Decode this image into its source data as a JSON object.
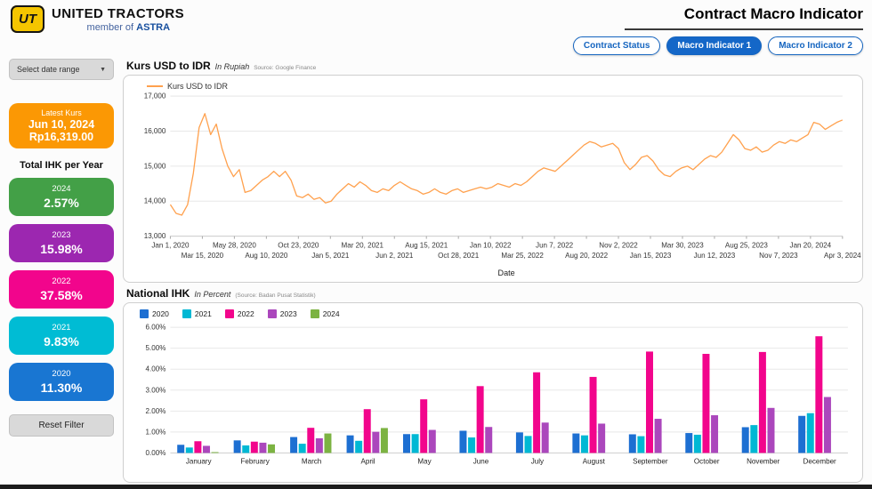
{
  "header": {
    "logo": "UT",
    "brand": "UNITED TRACTORS",
    "member_of": "member of",
    "astra": "ASTRA",
    "title": "Contract Macro Indicator",
    "tabs": [
      {
        "label": "Contract Status",
        "active": false
      },
      {
        "label": "Macro Indicator 1",
        "active": true
      },
      {
        "label": "Macro Indicator 2",
        "active": false
      }
    ]
  },
  "sidebar": {
    "date_range": {
      "label": "Select date range"
    },
    "latest_kurs": {
      "title": "Latest Kurs",
      "date": "Jun 10, 2024",
      "value": "Rp16,319.00",
      "color": "#FB9804"
    },
    "total_ihk_title": "Total IHK per Year",
    "year_cards": [
      {
        "year": "2024",
        "value": "2.57%",
        "color": "#43A047"
      },
      {
        "year": "2023",
        "value": "15.98%",
        "color": "#9C27B0"
      },
      {
        "year": "2022",
        "value": "37.58%",
        "color": "#F2058C"
      },
      {
        "year": "2021",
        "value": "9.83%",
        "color": "#00BCD4"
      },
      {
        "year": "2020",
        "value": "11.30%",
        "color": "#1976D2"
      }
    ],
    "reset_label": "Reset Filter"
  },
  "chart_data": [
    {
      "type": "line",
      "title": "Kurs USD to IDR",
      "subtitle": "In Rupiah",
      "source": "Source: Google Finance",
      "xlabel": "Date",
      "ylim": [
        13000,
        17000
      ],
      "y_ticks": [
        13000,
        14000,
        15000,
        16000,
        17000
      ],
      "x_ticks": [
        "Jan 1, 2020",
        "Mar 15, 2020",
        "May 28, 2020",
        "Aug 10, 2020",
        "Oct 23, 2020",
        "Jan 5, 2021",
        "Mar 20, 2021",
        "Jun 2, 2021",
        "Aug 15, 2021",
        "Oct 28, 2021",
        "Jan 10, 2022",
        "Mar 25, 2022",
        "Jun 7, 2022",
        "Aug 20, 2022",
        "Nov 2, 2022",
        "Jan 15, 2023",
        "Mar 30, 2023",
        "Jun 12, 2023",
        "Aug 25, 2023",
        "Nov 7, 2023",
        "Jan 20, 2024",
        "Apr 3, 2024"
      ],
      "legend_position": "top-left",
      "grid": true,
      "series": [
        {
          "name": "Kurs USD to IDR",
          "color": "#FFA14E",
          "values": [
            13900,
            13650,
            13600,
            13900,
            14800,
            16100,
            16500,
            15900,
            16200,
            15500,
            15000,
            14700,
            14900,
            14250,
            14300,
            14450,
            14600,
            14700,
            14850,
            14700,
            14850,
            14600,
            14150,
            14100,
            14200,
            14050,
            14100,
            13950,
            14000,
            14200,
            14350,
            14500,
            14400,
            14550,
            14450,
            14300,
            14250,
            14350,
            14300,
            14450,
            14550,
            14450,
            14350,
            14300,
            14200,
            14250,
            14350,
            14250,
            14200,
            14300,
            14350,
            14250,
            14300,
            14350,
            14400,
            14350,
            14400,
            14500,
            14450,
            14400,
            14500,
            14450,
            14550,
            14700,
            14850,
            14950,
            14900,
            14850,
            15000,
            15150,
            15300,
            15450,
            15600,
            15700,
            15650,
            15550,
            15600,
            15650,
            15500,
            15100,
            14900,
            15050,
            15250,
            15300,
            15150,
            14900,
            14750,
            14700,
            14850,
            14950,
            15000,
            14900,
            15050,
            15200,
            15300,
            15250,
            15400,
            15650,
            15900,
            15750,
            15500,
            15450,
            15550,
            15400,
            15450,
            15600,
            15700,
            15650,
            15750,
            15700,
            15800,
            15900,
            16250,
            16200,
            16050,
            16150,
            16250,
            16319
          ]
        }
      ]
    },
    {
      "type": "bar",
      "title": "National IHK",
      "subtitle": "In Percent",
      "source": "(Source: Badan Pusat Statistik)",
      "ylim": [
        0,
        6
      ],
      "y_ticks": [
        "0.00%",
        "1.00%",
        "2.00%",
        "3.00%",
        "4.00%",
        "5.00%",
        "6.00%"
      ],
      "categories": [
        "January",
        "February",
        "March",
        "April",
        "May",
        "June",
        "July",
        "August",
        "September",
        "October",
        "November",
        "December"
      ],
      "legend_position": "top-left",
      "grid": true,
      "series": [
        {
          "name": "2020",
          "color": "#1D6FD2",
          "values": [
            0.39,
            0.6,
            0.76,
            0.84,
            0.9,
            1.06,
            0.98,
            0.93,
            0.89,
            0.95,
            1.23,
            1.77
          ]
        },
        {
          "name": "2021",
          "color": "#00B8D4",
          "values": [
            0.26,
            0.36,
            0.44,
            0.58,
            0.9,
            0.74,
            0.81,
            0.84,
            0.8,
            0.87,
            1.33,
            1.9
          ]
        },
        {
          "name": "2022",
          "color": "#F2058C",
          "values": [
            0.56,
            0.54,
            1.2,
            2.09,
            2.56,
            3.19,
            3.85,
            3.63,
            4.84,
            4.73,
            4.82,
            5.57
          ]
        },
        {
          "name": "2023",
          "color": "#AB47BC",
          "values": [
            0.34,
            0.49,
            0.7,
            1.01,
            1.1,
            1.24,
            1.45,
            1.4,
            1.63,
            1.8,
            2.15,
            2.67
          ]
        },
        {
          "name": "2024",
          "color": "#7CB342",
          "values": [
            0.04,
            0.41,
            0.93,
            1.19,
            null,
            null,
            null,
            null,
            null,
            null,
            null,
            null
          ]
        }
      ]
    }
  ]
}
